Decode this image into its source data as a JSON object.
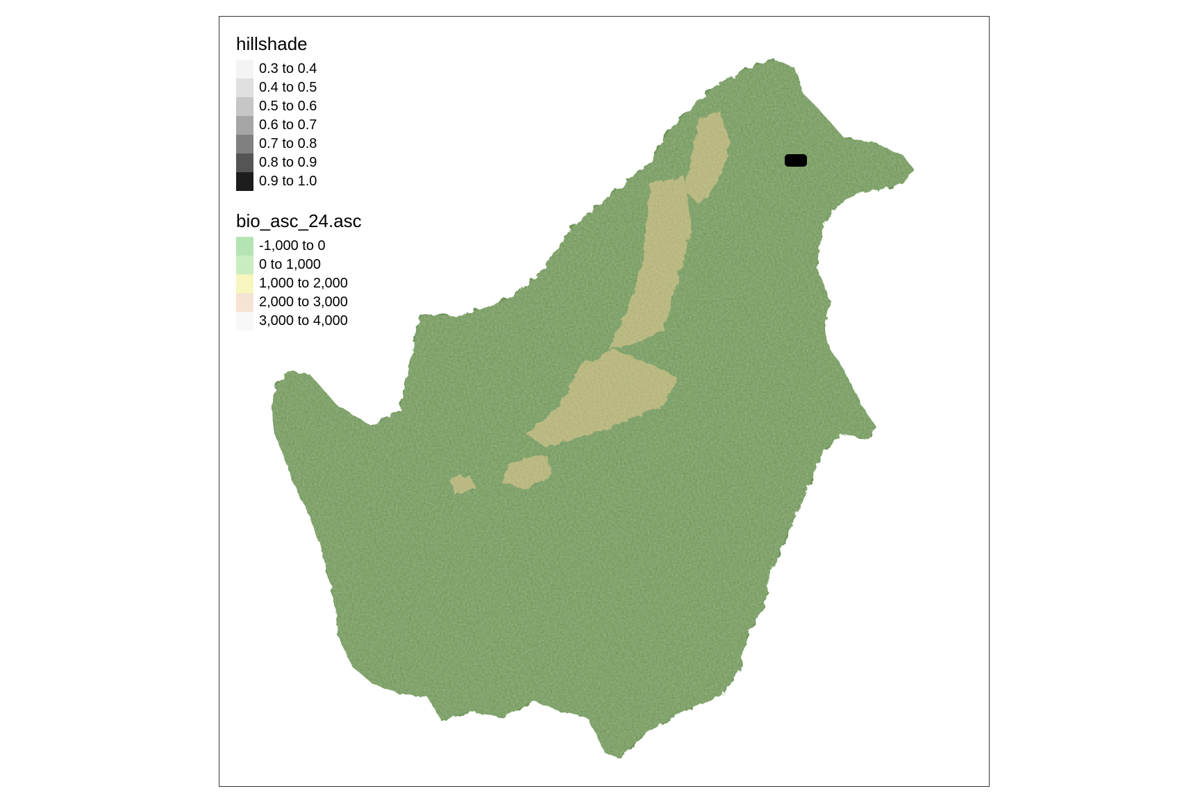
{
  "legends": {
    "hillshade": {
      "title": "hillshade",
      "items": [
        {
          "label": "0.3 to 0.4",
          "color": "#f4f4f4"
        },
        {
          "label": "0.4 to 0.5",
          "color": "#e0e0e0"
        },
        {
          "label": "0.5 to 0.6",
          "color": "#c6c6c6"
        },
        {
          "label": "0.6 to 0.7",
          "color": "#a5a5a5"
        },
        {
          "label": "0.7 to 0.8",
          "color": "#808080"
        },
        {
          "label": "0.8 to 0.9",
          "color": "#555555"
        },
        {
          "label": "0.9 to 1.0",
          "color": "#1d1d1d"
        }
      ]
    },
    "bio": {
      "title": "bio_asc_24.asc",
      "items": [
        {
          "label": "-1,000 to 0",
          "color": "#b5e4b4"
        },
        {
          "label": "0 to 1,000",
          "color": "#c9edc0"
        },
        {
          "label": "1,000 to 2,000",
          "color": "#f6f6be"
        },
        {
          "label": "2,000 to 3,000",
          "color": "#f5e3d4"
        },
        {
          "label": "3,000 to 4,000",
          "color": "#f8f8f8"
        }
      ]
    }
  },
  "map": {
    "land_color": "#6e9458",
    "highland_color": "#c9b77a",
    "marker_color": "#000000"
  }
}
